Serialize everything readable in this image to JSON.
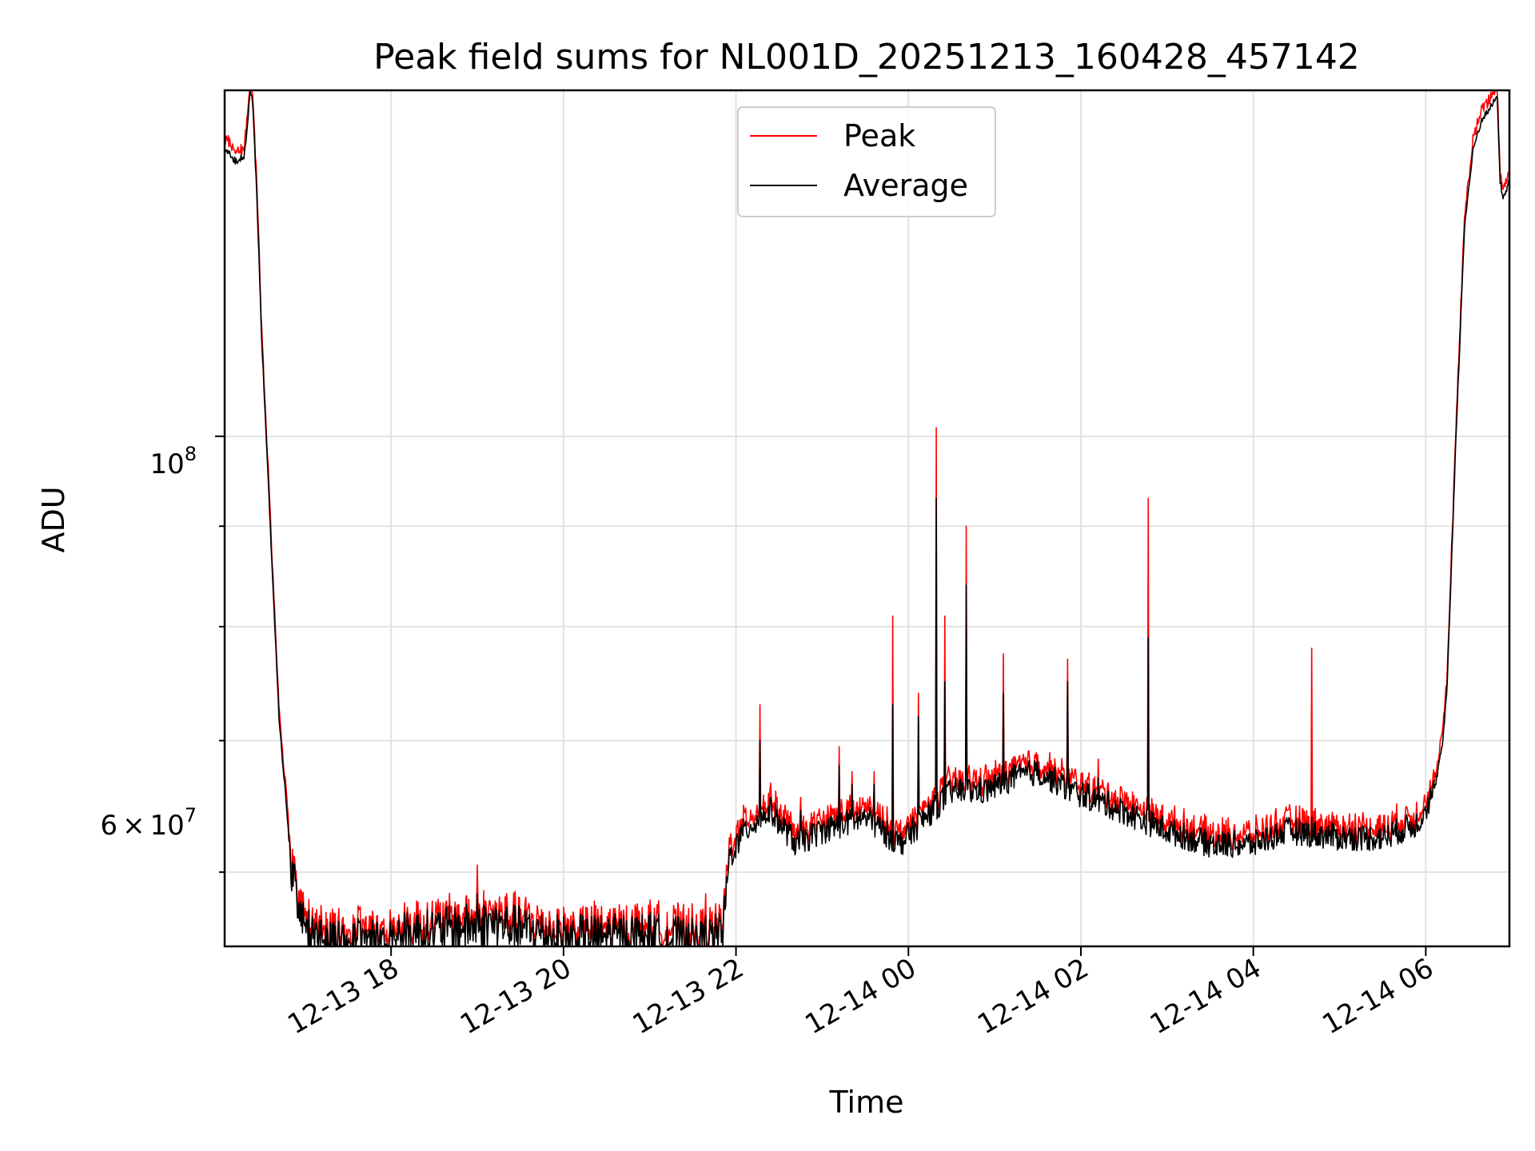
{
  "chart_data": {
    "type": "line",
    "title": "Peak field sums for NL001D_20251213_160428_457142",
    "xlabel": "Time",
    "ylabel": "ADU",
    "x_ticks": [
      "12-13 18",
      "12-13 20",
      "12-13 22",
      "12-14 00",
      "12-14 02",
      "12-14 04",
      "12-14 06"
    ],
    "x_tick_hours": [
      18,
      20,
      22,
      24,
      26,
      28,
      30
    ],
    "xlim_hours": [
      16.07,
      30.97
    ],
    "y_scale": "log",
    "ylim": [
      55000000,
      150000000
    ],
    "y_major_tick": {
      "value": 100000000,
      "base": "10",
      "exp": "8"
    },
    "y_minor_labeled_tick": {
      "value": 60000000,
      "mantissa": "6",
      "times": "×",
      "base": "10",
      "exp": "7"
    },
    "y_minor_ticks": [
      60000000,
      70000000,
      80000000,
      90000000
    ],
    "grid": true,
    "legend_position": "upper center",
    "colors": {
      "peak": "#ff0000",
      "average": "#000000"
    },
    "average_anchors_x": [
      16.07,
      16.2,
      16.3,
      16.37,
      16.4,
      16.45,
      16.5,
      16.7,
      16.85,
      17.0,
      17.2,
      17.5,
      18.5,
      19.2,
      20.0,
      21.0,
      21.6,
      21.85,
      21.92,
      22.1,
      22.4,
      22.7,
      23.0,
      23.5,
      23.9,
      24.2,
      24.5,
      24.9,
      25.2,
      25.5,
      25.9,
      26.3,
      27.0,
      27.5,
      28.0,
      28.4,
      29.0,
      29.5,
      29.9,
      30.1,
      30.2,
      30.25,
      30.35,
      30.45,
      30.55,
      30.65,
      30.75,
      30.83,
      30.86,
      30.9,
      30.97
    ],
    "average_anchors_y": [
      140000000,
      138000000,
      139000000,
      150000000,
      147000000,
      130000000,
      112000000,
      72000000,
      60000000,
      56000000,
      55500000,
      55200000,
      56000000,
      56500000,
      55500000,
      55700000,
      55200000,
      55800000,
      61000000,
      63000000,
      64500000,
      62000000,
      63000000,
      64000000,
      62000000,
      64000000,
      66000000,
      66000000,
      67000000,
      67500000,
      66000000,
      65000000,
      63000000,
      62000000,
      62000000,
      63000000,
      62500000,
      62500000,
      63500000,
      66000000,
      70000000,
      75000000,
      100000000,
      128000000,
      140000000,
      145000000,
      147000000,
      149000000,
      135000000,
      132000000,
      135000000
    ],
    "spikes": [
      {
        "x": 18.3,
        "peak": 58000000,
        "avg": 57000000
      },
      {
        "x": 19.0,
        "peak": 60500000,
        "avg": 58500000
      },
      {
        "x": 20.9,
        "peak": 56500000,
        "avg": 56000000
      },
      {
        "x": 21.45,
        "peak": 57500000,
        "avg": 56500000
      },
      {
        "x": 21.65,
        "peak": 58500000,
        "avg": 57000000
      },
      {
        "x": 22.28,
        "peak": 73000000,
        "avg": 70000000
      },
      {
        "x": 22.75,
        "peak": 65500000,
        "avg": 64500000
      },
      {
        "x": 23.2,
        "peak": 69500000,
        "avg": 68000000
      },
      {
        "x": 23.35,
        "peak": 67500000,
        "avg": 66500000
      },
      {
        "x": 23.6,
        "peak": 67500000,
        "avg": 66500000
      },
      {
        "x": 23.82,
        "peak": 81000000,
        "avg": 73000000
      },
      {
        "x": 24.12,
        "peak": 74000000,
        "avg": 72000000
      },
      {
        "x": 24.32,
        "peak": 101000000,
        "avg": 93000000
      },
      {
        "x": 24.42,
        "peak": 81000000,
        "avg": 75000000
      },
      {
        "x": 24.67,
        "peak": 90000000,
        "avg": 84000000
      },
      {
        "x": 25.1,
        "peak": 77500000,
        "avg": 74000000
      },
      {
        "x": 25.85,
        "peak": 77000000,
        "avg": 75000000
      },
      {
        "x": 26.2,
        "peak": 68500000,
        "avg": 67000000
      },
      {
        "x": 26.78,
        "peak": 93000000,
        "avg": 79000000
      },
      {
        "x": 28.68,
        "peak": 78000000,
        "avg": 64000000
      }
    ]
  },
  "legend": {
    "peak_label": "Peak",
    "average_label": "Average"
  }
}
